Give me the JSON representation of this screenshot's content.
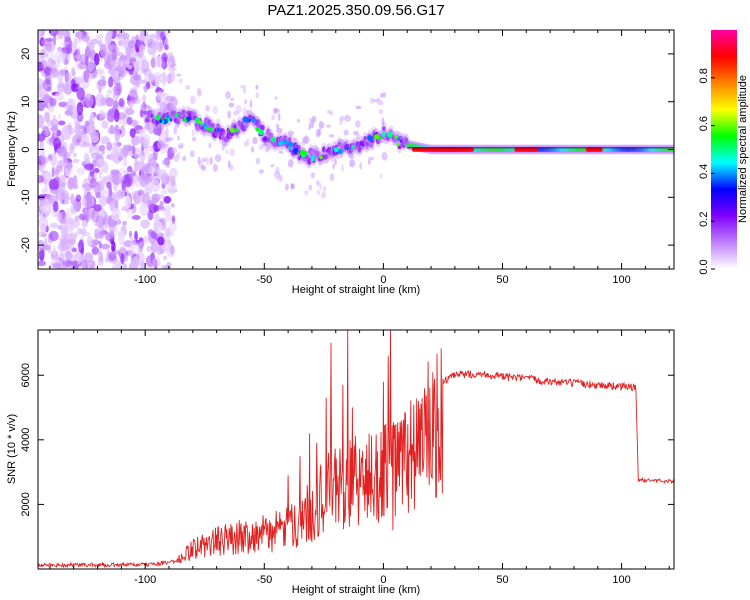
{
  "title": "PAZ1.2025.350.09.56.G17",
  "colors": {
    "snr_line": "#e32020",
    "axis": "#000000",
    "background": "#ffffff"
  },
  "chart_data": [
    {
      "type": "heatmap",
      "name": "spectrogram",
      "xlabel": "Height of straight line (km)",
      "ylabel": "Frequency (Hz)",
      "xlim": [
        -145,
        122
      ],
      "ylim": [
        -25,
        25
      ],
      "xticks": [
        -100,
        -50,
        0,
        50,
        100
      ],
      "yticks": [
        -20,
        -10,
        0,
        10,
        20
      ],
      "xtick_labels": [
        "-100",
        "-50",
        "0",
        "50",
        "100"
      ],
      "ytick_labels": [
        "-20",
        "-10",
        "0",
        "10",
        "20"
      ],
      "ridge": {
        "x": [
          -100,
          -92,
          -85,
          -80,
          -75,
          -70,
          -65,
          -60,
          -55,
          -50,
          -45,
          -40,
          -35,
          -30,
          -25,
          -20,
          -15,
          -10,
          -5,
          0,
          5,
          10,
          20,
          40,
          60,
          80,
          100,
          122
        ],
        "y": [
          7,
          6,
          7,
          6.5,
          5,
          4,
          3,
          5,
          6,
          3,
          2,
          1,
          -1,
          -1.5,
          -1,
          0,
          0.5,
          1,
          2,
          3.5,
          2,
          1,
          0,
          0,
          0,
          0,
          0,
          0
        ]
      },
      "strong_segments": [
        {
          "x_start": 12,
          "x_end": 38,
          "freq": 0
        },
        {
          "x_start": 55,
          "x_end": 65,
          "freq": 0
        },
        {
          "x_start": 85,
          "x_end": 92,
          "freq": 0
        }
      ],
      "noise_region_x": [
        -145,
        -88
      ],
      "colorbar": {
        "label": "Normalized spectral amplitude",
        "range": [
          0,
          1
        ],
        "ticks": [
          0.0,
          0.2,
          0.4,
          0.6,
          0.8
        ],
        "tick_labels": [
          "0.0",
          "0.2",
          "0.4",
          "0.6",
          "0.8"
        ],
        "colors": [
          "#ffffff",
          "#c080ff",
          "#8000ff",
          "#0000ff",
          "#00ffff",
          "#00ff00",
          "#ffff00",
          "#ff8000",
          "#ff0000",
          "#ff00a0"
        ]
      }
    },
    {
      "type": "line",
      "name": "snr",
      "xlabel": "Height of straight line (km)",
      "ylabel": "SNR (10 * v/v)",
      "xlim": [
        -145,
        122
      ],
      "ylim": [
        0,
        7400
      ],
      "xticks": [
        -100,
        -50,
        0,
        50,
        100
      ],
      "yticks": [
        2000,
        4000,
        6000
      ],
      "xtick_labels": [
        "-100",
        "-50",
        "0",
        "50",
        "100"
      ],
      "ytick_labels": [
        "2000",
        "4000",
        "6000"
      ],
      "series": [
        {
          "name": "SNR",
          "envelope_x": [
            -145,
            -100,
            -90,
            -85,
            -80,
            -70,
            -60,
            -50,
            -40,
            -35,
            -30,
            -25,
            -20,
            -15,
            -10,
            -5,
            0,
            5,
            10,
            15,
            20,
            25,
            30,
            40,
            50,
            60,
            70,
            80,
            90,
            100,
            106,
            107,
            110,
            122
          ],
          "envelope_y": [
            120,
            130,
            200,
            400,
            800,
            1100,
            1300,
            1400,
            1600,
            2000,
            2300,
            2900,
            3200,
            3400,
            3500,
            3600,
            3800,
            4100,
            4400,
            5000,
            5500,
            5800,
            6000,
            6050,
            5950,
            5900,
            5800,
            5750,
            5700,
            5650,
            5620,
            2750,
            2750,
            2720
          ],
          "spikes_x": [
            -40,
            -35,
            -31,
            -28,
            -24,
            -22,
            -17,
            -15,
            -13,
            0,
            2,
            3,
            4
          ],
          "spikes_y": [
            2900,
            3500,
            4200,
            3900,
            5300,
            7000,
            5700,
            7400,
            5000,
            5800,
            6600,
            7400,
            1200
          ]
        }
      ]
    }
  ]
}
